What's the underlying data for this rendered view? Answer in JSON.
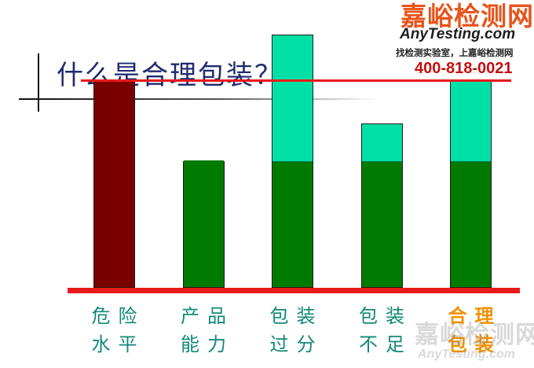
{
  "title": "什么是合理包装？",
  "logo": {
    "name": "嘉峪检测网",
    "site": "AnyTesting.com",
    "slogan": "找检测实验室，上嘉峪检测网",
    "phone": "400-818-0021"
  },
  "watermark": {
    "name": "嘉峪检测网",
    "site": "AnyTesting.com"
  },
  "colors": {
    "title": "#1f2a6e",
    "reference_line": "#e81a1a",
    "product": "#007b00",
    "packaging": "#00e0a6",
    "danger": "#7a0000",
    "label": "#12897a",
    "highlight_label": "#f29100"
  },
  "chart_data": {
    "type": "bar",
    "stacked": true,
    "categories": [
      "危险水平",
      "产品能力",
      "包装过分",
      "包装不足",
      "合理包装"
    ],
    "category_lines": [
      [
        "危险",
        "水平"
      ],
      [
        "产品",
        "能力"
      ],
      [
        "包装",
        "过分"
      ],
      [
        "包装",
        "不足"
      ],
      [
        "合理",
        "包装"
      ]
    ],
    "highlight_category": "合理包装",
    "ylim": [
      0,
      100
    ],
    "reference_level": 82,
    "series": [
      {
        "kind": "danger",
        "values": [
          82,
          0,
          0,
          0,
          0
        ]
      },
      {
        "kind": "product",
        "values": [
          0,
          50,
          50,
          50,
          50
        ]
      },
      {
        "kind": "packaging",
        "values": [
          0,
          0,
          50,
          15,
          32
        ]
      }
    ],
    "xlabel": "",
    "ylabel": ""
  }
}
